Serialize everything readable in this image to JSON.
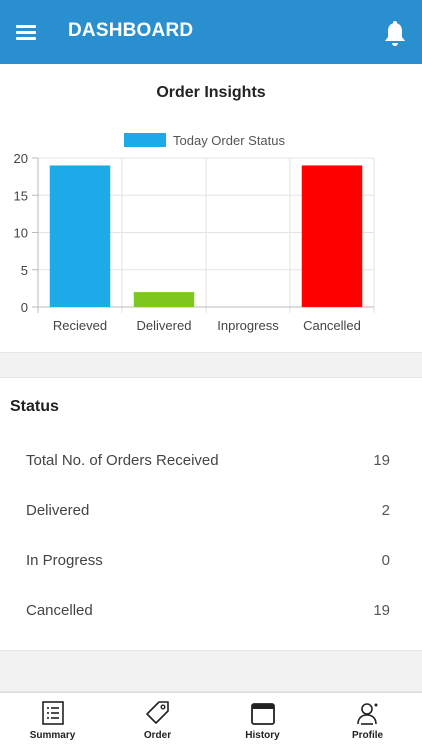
{
  "appbar": {
    "title": "DASHBOARD",
    "menu_icon": "hamburger-menu-icon",
    "notification_icon": "bell-icon",
    "background_color": "#2a8fcf"
  },
  "insights": {
    "title": "Order Insights"
  },
  "chart_data": {
    "type": "bar",
    "title": "",
    "categories": [
      "Recieved",
      "Delivered",
      "Inprogress",
      "Cancelled"
    ],
    "series": [
      {
        "name": "Today Order Status",
        "values": [
          19,
          2,
          0,
          19
        ]
      }
    ],
    "bar_colors": [
      "#1ea9e8",
      "#7dc71e",
      "#f0a800",
      "#ff0000"
    ],
    "legend_color": "#1ea9e8",
    "xlabel": "",
    "ylabel": "",
    "ylim": [
      0,
      20
    ],
    "y_ticks": [
      0,
      5,
      10,
      15,
      20
    ],
    "grid": true,
    "legend_position": "top"
  },
  "status": {
    "heading": "Status",
    "rows": [
      {
        "label": "Total No. of Orders Received",
        "value": "19"
      },
      {
        "label": "Delivered",
        "value": "2"
      },
      {
        "label": "In Progress",
        "value": "0"
      },
      {
        "label": "Cancelled",
        "value": "19"
      }
    ]
  },
  "bottom_nav": [
    {
      "label": "Summary",
      "icon": "list-icon"
    },
    {
      "label": "Order",
      "icon": "tag-icon"
    },
    {
      "label": "History",
      "icon": "calendar-icon"
    },
    {
      "label": "Profile",
      "icon": "profile-icon"
    }
  ]
}
